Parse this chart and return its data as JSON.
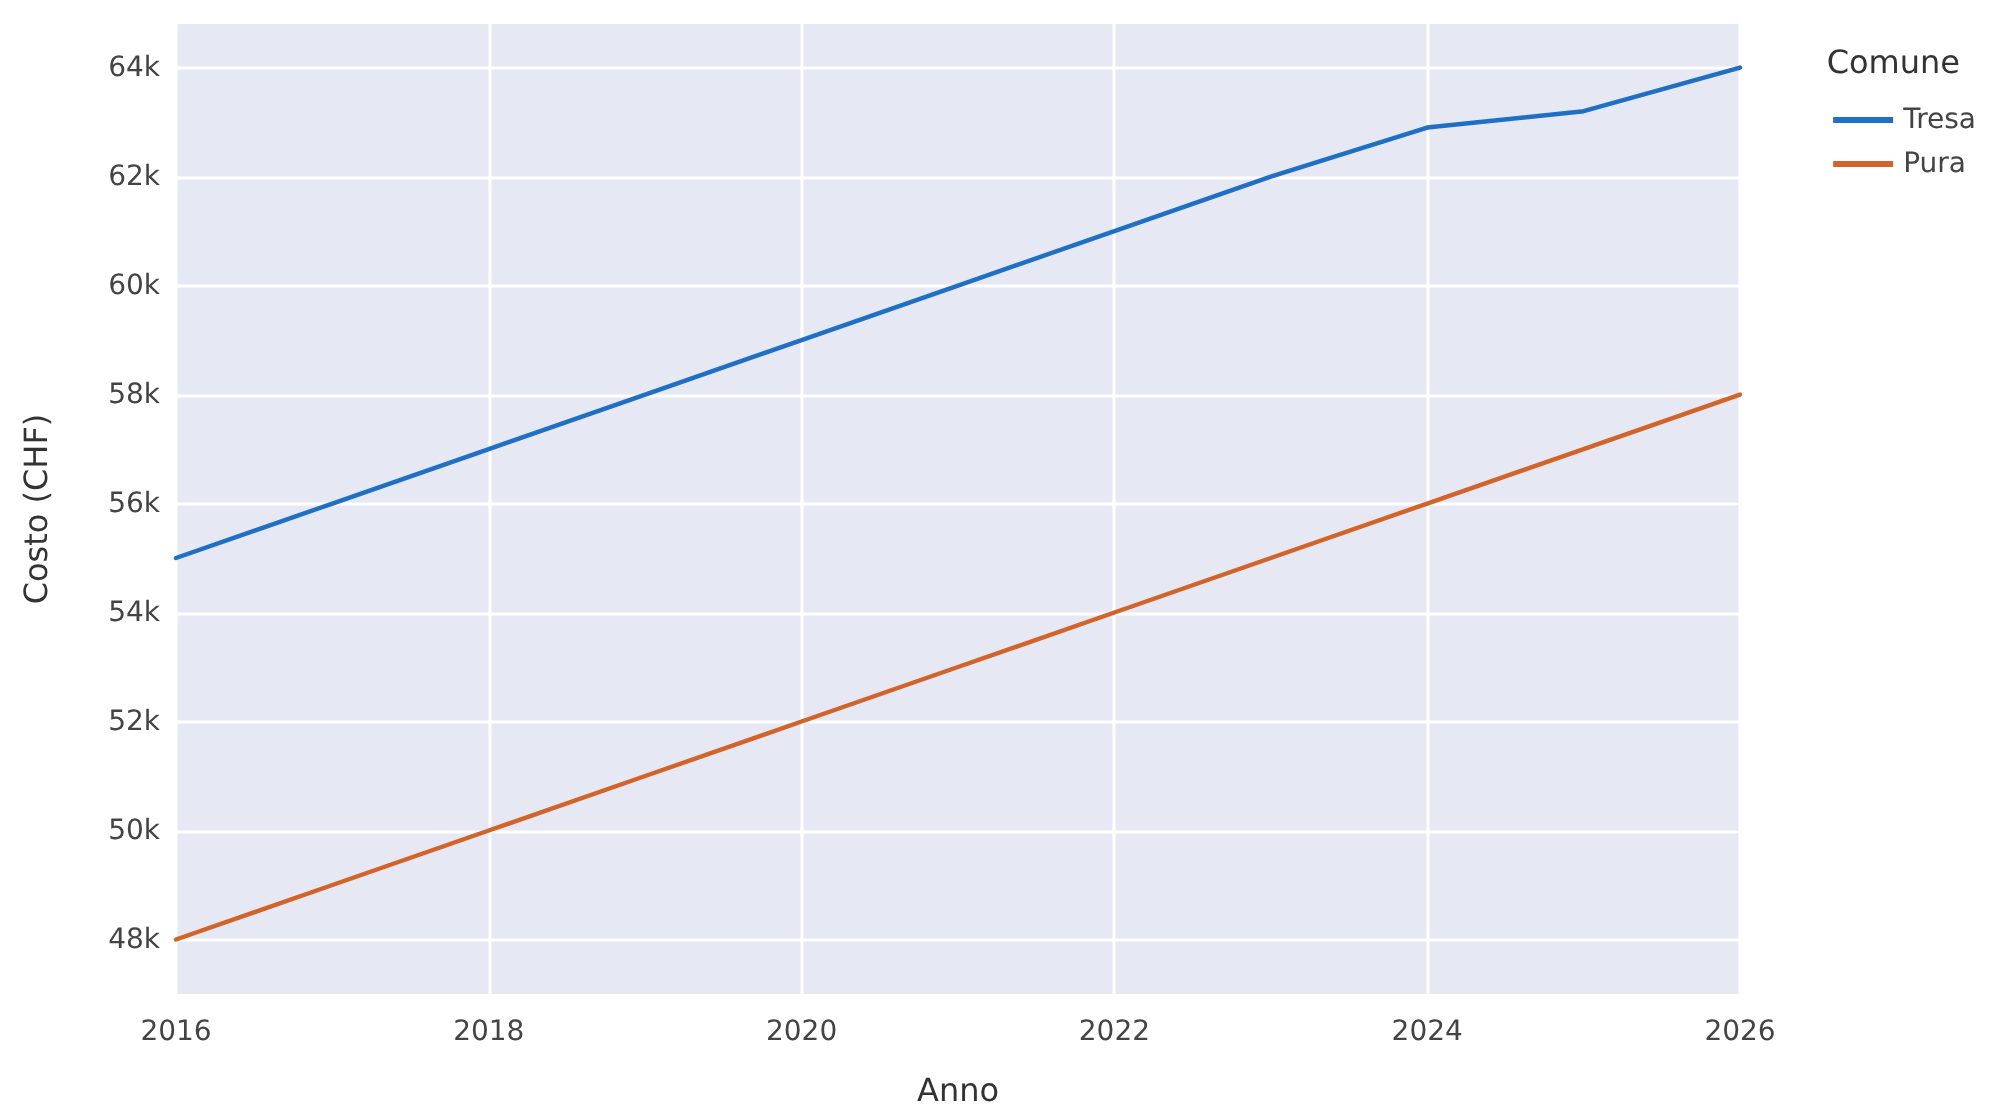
{
  "chart_data": {
    "type": "line",
    "xlabel": "Anno",
    "ylabel": "Costo (CHF)",
    "legend_title": "Comune",
    "legend": "top right",
    "x": [
      2016,
      2017,
      2018,
      2019,
      2020,
      2021,
      2022,
      2023,
      2024,
      2025,
      2026
    ],
    "series": [
      {
        "name": "Tresa",
        "color": "#1f6fc4",
        "values": [
          55000,
          56000,
          57000,
          58000,
          59000,
          60000,
          61000,
          62000,
          62900,
          63200,
          64000
        ]
      },
      {
        "name": "Pura",
        "color": "#d2642a",
        "values": [
          48000,
          49000,
          50000,
          51000,
          52000,
          53000,
          54000,
          55000,
          56000,
          57000,
          58000
        ]
      }
    ],
    "xlim": [
      2016,
      2026
    ],
    "xticks": [
      2016,
      2018,
      2020,
      2022,
      2024,
      2026
    ],
    "ylim": [
      47000,
      64800
    ],
    "yticks": [
      {
        "value": 48000,
        "label": "48k"
      },
      {
        "value": 50000,
        "label": "50k"
      },
      {
        "value": 52000,
        "label": "52k"
      },
      {
        "value": 54000,
        "label": "54k"
      },
      {
        "value": 56000,
        "label": "56k"
      },
      {
        "value": 58000,
        "label": "58k"
      },
      {
        "value": 60000,
        "label": "60k"
      },
      {
        "value": 62000,
        "label": "62k"
      },
      {
        "value": 64000,
        "label": "64k"
      }
    ],
    "grid": true,
    "marker": "none",
    "line_style": "solid"
  }
}
